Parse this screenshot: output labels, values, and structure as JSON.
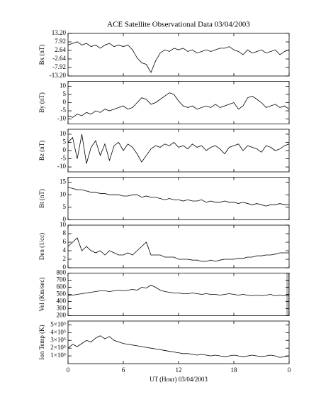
{
  "chart_data": [
    {
      "type": "line",
      "title": "ACE Satellite Observational Data   03/04/2003",
      "ylabel": "Bx (nT)",
      "color": "#000000",
      "x": [
        0,
        0.5,
        1,
        1.5,
        2,
        2.5,
        3,
        3.5,
        4,
        4.5,
        5,
        5.5,
        6,
        6.5,
        7,
        7.5,
        8,
        8.5,
        9,
        9.5,
        10,
        10.5,
        11,
        11.5,
        12,
        12.5,
        13,
        13.5,
        14,
        14.5,
        15,
        15.5,
        16,
        16.5,
        17,
        17.5,
        18,
        18.5,
        19,
        19.5,
        20,
        20.5,
        21,
        21.5,
        22,
        22.5,
        23,
        23.5,
        24
      ],
      "values": [
        6,
        7,
        8,
        6,
        7,
        5,
        6,
        4,
        6,
        7,
        5,
        6,
        5,
        6,
        3,
        -2,
        -5,
        -6,
        -11,
        -4,
        1,
        3,
        2,
        4,
        3,
        4,
        2,
        3,
        1,
        2,
        3,
        2,
        3,
        4,
        4,
        5,
        3,
        2,
        0,
        3,
        1,
        2,
        3,
        1,
        2,
        3,
        0,
        2,
        3
      ],
      "xlim": [
        0,
        24
      ],
      "ylim": [
        -13.2,
        13.2
      ],
      "yticks": [
        {
          "value": 13.2,
          "label": "13.20"
        },
        7.92,
        2.64,
        -2.64,
        -7.92,
        {
          "value": -13.2,
          "label": "-13.20"
        }
      ]
    },
    {
      "type": "line",
      "ylabel": "By (nT)",
      "color": "#000000",
      "x": [
        0,
        0.5,
        1,
        1.5,
        2,
        2.5,
        3,
        3.5,
        4,
        4.5,
        5,
        5.5,
        6,
        6.5,
        7,
        7.5,
        8,
        8.5,
        9,
        9.5,
        10,
        10.5,
        11,
        11.5,
        12,
        12.5,
        13,
        13.5,
        14,
        14.5,
        15,
        15.5,
        16,
        16.5,
        17,
        17.5,
        18,
        18.5,
        19,
        19.5,
        20,
        20.5,
        21,
        21.5,
        22,
        22.5,
        23,
        23.5,
        24
      ],
      "values": [
        -8,
        -9,
        -7,
        -8,
        -6,
        -7,
        -5,
        -6,
        -4,
        -5,
        -4,
        -3,
        -2,
        -4,
        -3,
        0,
        3,
        2,
        -1,
        0,
        2,
        4,
        6,
        5,
        1,
        -2,
        -3,
        -2,
        -4,
        -3,
        -2,
        -3,
        -1,
        -3,
        -2,
        -1,
        0,
        -4,
        -2,
        3,
        4,
        2,
        0,
        -3,
        -2,
        -1,
        -3,
        -2,
        -4
      ],
      "xlim": [
        0,
        24
      ],
      "ylim": [
        -13,
        13
      ],
      "yticks": [
        10,
        5,
        0,
        -5,
        -10
      ]
    },
    {
      "type": "line",
      "ylabel": "Bz (nT)",
      "color": "#000000",
      "x": [
        0,
        0.5,
        1,
        1.5,
        2,
        2.5,
        3,
        3.5,
        4,
        4.5,
        5,
        5.5,
        6,
        6.5,
        7,
        7.5,
        8,
        8.5,
        9,
        9.5,
        10,
        10.5,
        11,
        11.5,
        12,
        12.5,
        13,
        13.5,
        14,
        14.5,
        15,
        15.5,
        16,
        16.5,
        17,
        17.5,
        18,
        18.5,
        19,
        19.5,
        20,
        20.5,
        21,
        21.5,
        22,
        22.5,
        23,
        23.5,
        24
      ],
      "values": [
        5,
        8,
        -5,
        10,
        -8,
        2,
        6,
        -3,
        4,
        -6,
        3,
        5,
        0,
        4,
        2,
        -2,
        -7,
        -3,
        1,
        3,
        2,
        4,
        3,
        5,
        2,
        3,
        1,
        4,
        2,
        3,
        0,
        2,
        3,
        1,
        -2,
        2,
        3,
        4,
        0,
        3,
        2,
        1,
        -1,
        3,
        2,
        0,
        1,
        3,
        4
      ],
      "xlim": [
        0,
        24
      ],
      "ylim": [
        -13,
        13
      ],
      "yticks": [
        10,
        5,
        0,
        -5,
        -10
      ]
    },
    {
      "type": "line",
      "ylabel": "Bt (nT)",
      "color": "#000000",
      "x": [
        0,
        0.5,
        1,
        1.5,
        2,
        2.5,
        3,
        3.5,
        4,
        4.5,
        5,
        5.5,
        6,
        6.5,
        7,
        7.5,
        8,
        8.5,
        9,
        9.5,
        10,
        10.5,
        11,
        11.5,
        12,
        12.5,
        13,
        13.5,
        14,
        14.5,
        15,
        15.5,
        16,
        16.5,
        17,
        17.5,
        18,
        18.5,
        19,
        19.5,
        20,
        20.5,
        21,
        21.5,
        22,
        22.5,
        23,
        23.5,
        24
      ],
      "values": [
        13,
        12.5,
        12,
        12,
        11.5,
        11,
        11,
        10.5,
        10.5,
        10,
        10,
        10,
        9.5,
        9.5,
        10,
        10,
        9,
        9.5,
        9,
        9,
        8.5,
        8,
        8.5,
        8,
        8,
        7.5,
        8,
        7.5,
        7.5,
        8,
        7,
        7.5,
        7,
        7,
        7.5,
        7,
        7,
        6.5,
        7,
        6.5,
        6,
        6.5,
        6,
        5.5,
        6,
        6,
        6.5,
        6,
        6
      ],
      "xlim": [
        0,
        24
      ],
      "ylim": [
        0,
        17
      ],
      "yticks": [
        15,
        10,
        5,
        0
      ]
    },
    {
      "type": "line",
      "ylabel": "Den (1/cc)",
      "color": "#000000",
      "x": [
        0,
        0.5,
        1,
        1.5,
        2,
        2.5,
        3,
        3.5,
        4,
        4.5,
        5,
        5.5,
        6,
        6.5,
        7,
        7.5,
        8,
        8.5,
        9,
        9.5,
        10,
        10.5,
        11,
        11.5,
        12,
        12.5,
        13,
        13.5,
        14,
        14.5,
        15,
        15.5,
        16,
        16.5,
        17,
        17.5,
        18,
        18.5,
        19,
        19.5,
        20,
        20.5,
        21,
        21.5,
        22,
        22.5,
        23,
        23.5,
        24
      ],
      "values": [
        5,
        6,
        7,
        4,
        5,
        4,
        3.5,
        4,
        3,
        4,
        3.5,
        3,
        3,
        3.5,
        3,
        4,
        5,
        6,
        3,
        3,
        3,
        2.5,
        2.5,
        2.5,
        2,
        2,
        2,
        1.8,
        1.8,
        1.5,
        1.5,
        1.8,
        1.5,
        1.8,
        2,
        2,
        2,
        2.2,
        2.2,
        2.5,
        2.5,
        2.8,
        2.8,
        3,
        3,
        3.2,
        3.5,
        3.5,
        3.5
      ],
      "xlim": [
        0,
        24
      ],
      "ylim": [
        0,
        10
      ],
      "yticks": [
        10,
        8,
        6,
        4,
        2,
        0
      ]
    },
    {
      "type": "line",
      "ylabel": "Vel (Km/sec)",
      "color": "#000000",
      "x": [
        0,
        0.5,
        1,
        1.5,
        2,
        2.5,
        3,
        3.5,
        4,
        4.5,
        5,
        5.5,
        6,
        6.5,
        7,
        7.5,
        8,
        8.5,
        9,
        9.5,
        10,
        10.5,
        11,
        11.5,
        12,
        12.5,
        13,
        13.5,
        14,
        14.5,
        15,
        15.5,
        16,
        16.5,
        17,
        17.5,
        18,
        18.5,
        19,
        19.5,
        20,
        20.5,
        21,
        21.5,
        22,
        22.5,
        23,
        23.5,
        24
      ],
      "values": [
        480,
        490,
        500,
        510,
        520,
        530,
        540,
        550,
        550,
        540,
        550,
        560,
        550,
        560,
        570,
        560,
        600,
        590,
        630,
        600,
        560,
        540,
        530,
        520,
        520,
        510,
        510,
        520,
        510,
        500,
        510,
        500,
        500,
        490,
        500,
        510,
        500,
        490,
        500,
        490,
        480,
        490,
        480,
        490,
        500,
        480,
        490,
        480,
        490
      ],
      "xlim": [
        0,
        24
      ],
      "ylim": [
        200,
        800
      ],
      "yticks": [
        800,
        700,
        600,
        500,
        400,
        300,
        200
      ]
    },
    {
      "type": "line",
      "ylabel": "Ion Temp (K)",
      "xlabel": "UT (Hour)   03/04/2003",
      "color": "#000000",
      "x": [
        0,
        0.5,
        1,
        1.5,
        2,
        2.5,
        3,
        3.5,
        4,
        4.5,
        5,
        5.5,
        6,
        6.5,
        7,
        7.5,
        8,
        8.5,
        9,
        9.5,
        10,
        10.5,
        11,
        11.5,
        12,
        12.5,
        13,
        13.5,
        14,
        14.5,
        15,
        15.5,
        16,
        16.5,
        17,
        17.5,
        18,
        18.5,
        19,
        19.5,
        20,
        20.5,
        21,
        21.5,
        22,
        22.5,
        23,
        23.5,
        24
      ],
      "values": [
        200000,
        250000,
        220000,
        260000,
        300000,
        280000,
        330000,
        360000,
        320000,
        350000,
        300000,
        280000,
        260000,
        250000,
        240000,
        230000,
        220000,
        210000,
        200000,
        190000,
        180000,
        170000,
        160000,
        150000,
        140000,
        130000,
        130000,
        120000,
        110000,
        120000,
        110000,
        100000,
        110000,
        100000,
        90000,
        100000,
        110000,
        100000,
        90000,
        100000,
        110000,
        100000,
        90000,
        100000,
        110000,
        100000,
        80000,
        90000,
        100000
      ],
      "xlim": [
        0,
        24
      ],
      "ylim": [
        0,
        550000
      ],
      "yticks": [
        {
          "value": 500000,
          "label": "5×10⁵"
        },
        {
          "value": 400000,
          "label": "4×10⁵"
        },
        {
          "value": 300000,
          "label": "3×10⁵"
        },
        {
          "value": 200000,
          "label": "2×10⁵"
        },
        {
          "value": 100000,
          "label": "1×10⁵"
        }
      ],
      "xticks": [
        0,
        6,
        12,
        18,
        {
          "value": 24,
          "label": "0"
        }
      ]
    }
  ]
}
